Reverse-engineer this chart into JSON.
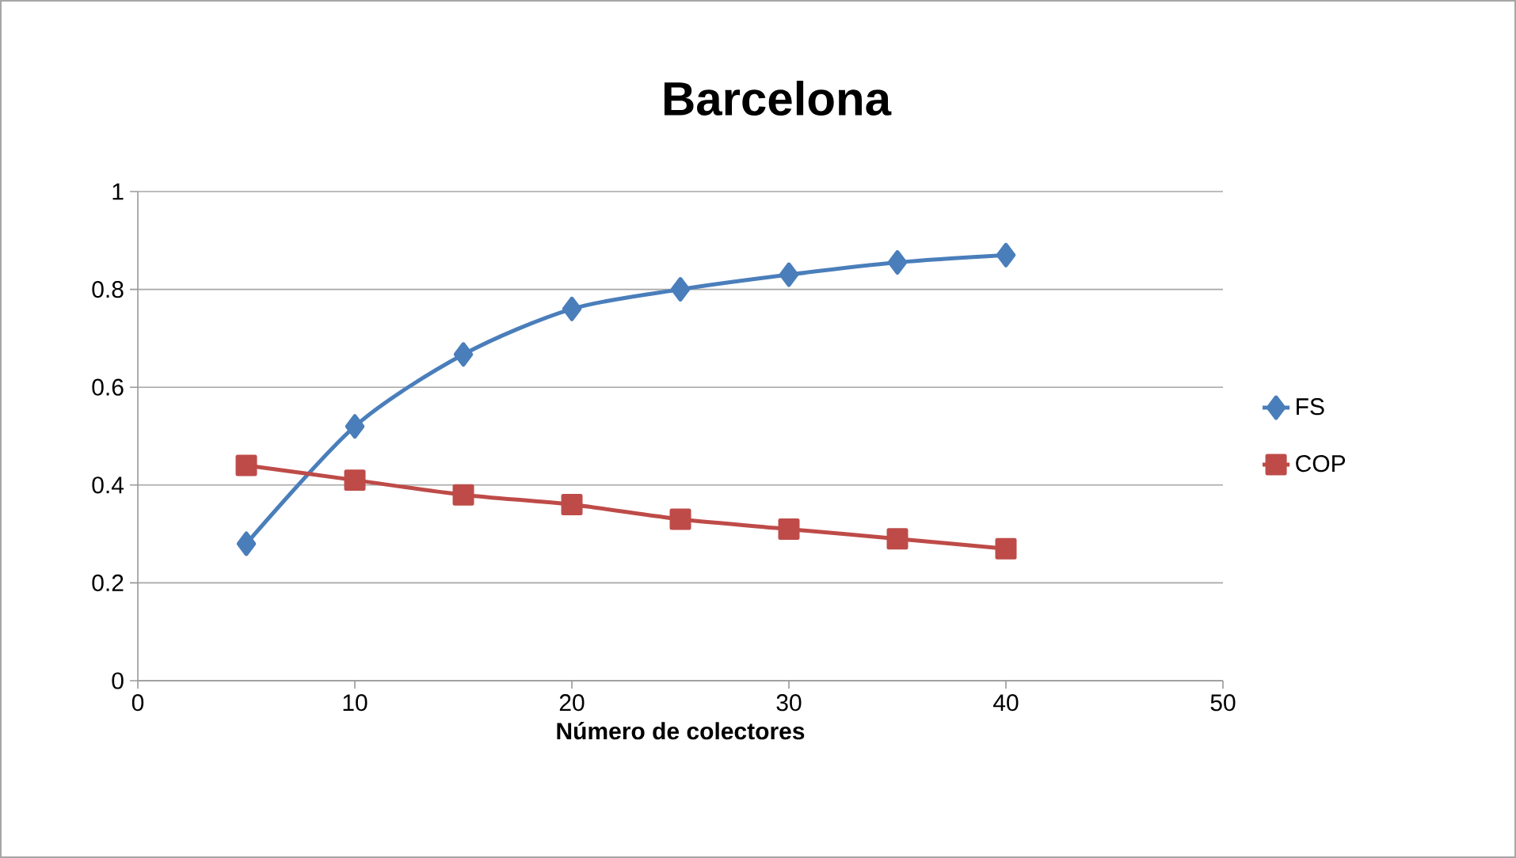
{
  "chart_data": {
    "type": "line",
    "title": "Barcelona",
    "xlabel": "Número de colectores",
    "xlim": [
      0,
      50
    ],
    "xticks": [
      0,
      10,
      20,
      30,
      40,
      50
    ],
    "ylim": [
      0,
      1
    ],
    "yticks": [
      0,
      0.2,
      0.4,
      0.6,
      0.8,
      {
        "value": 1,
        "label": "1"
      }
    ],
    "grid": "y",
    "legend": "right",
    "series": [
      {
        "name": "FS",
        "color": "#4a7ebb",
        "marker": "diamond",
        "x": [
          5,
          10,
          15,
          20,
          25,
          30,
          35,
          40
        ],
        "values": [
          0.28,
          0.52,
          0.667,
          0.76,
          0.8,
          0.83,
          0.855,
          0.87
        ]
      },
      {
        "name": "COP",
        "color": "#be4b48",
        "marker": "square",
        "x": [
          5,
          10,
          15,
          20,
          25,
          30,
          35,
          40
        ],
        "values": [
          0.44,
          0.41,
          0.38,
          0.36,
          0.33,
          0.31,
          0.29,
          0.27
        ]
      }
    ]
  }
}
